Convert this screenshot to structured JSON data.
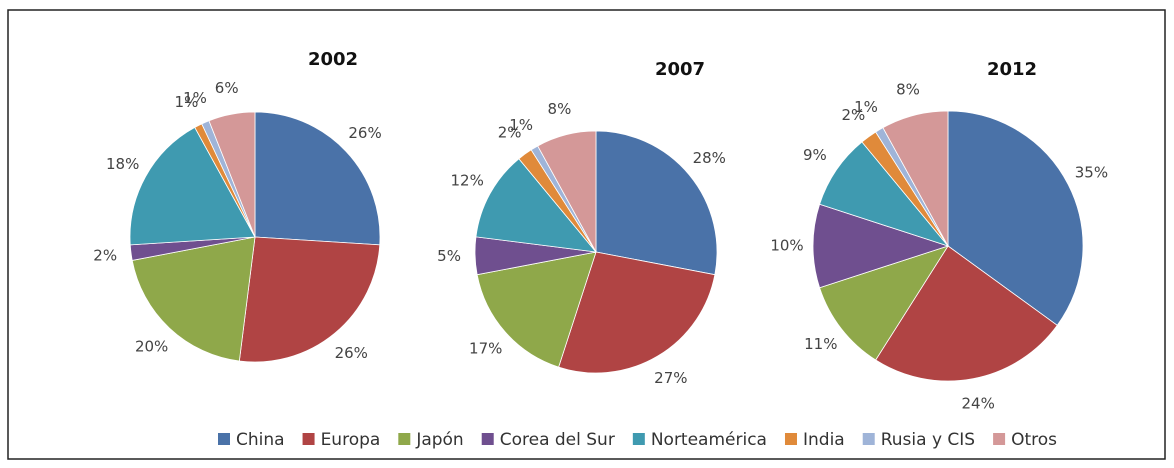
{
  "chart_data": [
    {
      "type": "pie",
      "title": "2002",
      "categories": [
        "China",
        "Europa",
        "Japón",
        "Corea del Sur",
        "Norteamérica",
        "India",
        "Rusia y CIS",
        "Otros"
      ],
      "values": [
        26,
        26,
        20,
        2,
        18,
        1,
        1,
        6
      ],
      "value_labels": [
        "26%",
        "26%",
        "20%",
        "2%",
        "18%",
        "1%",
        "1%",
        "6%"
      ],
      "colors": [
        "#4a72a8",
        "#b04444",
        "#8fa84a",
        "#6f4f8f",
        "#3f9ab0",
        "#e08a3a",
        "#9fb4d8",
        "#d49898"
      ]
    },
    {
      "type": "pie",
      "title": "2007",
      "categories": [
        "China",
        "Europa",
        "Japón",
        "Corea del Sur",
        "Norteamérica",
        "India",
        "Rusia y CIS",
        "Otros"
      ],
      "values": [
        28,
        27,
        17,
        5,
        12,
        2,
        1,
        8
      ],
      "value_labels": [
        "28%",
        "27%",
        "17%",
        "5%",
        "12%",
        "2%",
        "1%",
        "8%"
      ],
      "colors": [
        "#4a72a8",
        "#b04444",
        "#8fa84a",
        "#6f4f8f",
        "#3f9ab0",
        "#e08a3a",
        "#9fb4d8",
        "#d49898"
      ]
    },
    {
      "type": "pie",
      "title": "2012",
      "categories": [
        "China",
        "Europa",
        "Japón",
        "Corea del Sur",
        "Norteamérica",
        "India",
        "Rusia y CIS",
        "Otros"
      ],
      "values": [
        35,
        24,
        11,
        10,
        9,
        2,
        1,
        8
      ],
      "value_labels": [
        "35%",
        "24%",
        "11%",
        "10%",
        "9%",
        "2%",
        "1%",
        "8%"
      ],
      "colors": [
        "#4a72a8",
        "#b04444",
        "#8fa84a",
        "#6f4f8f",
        "#3f9ab0",
        "#e08a3a",
        "#9fb4d8",
        "#d49898"
      ]
    }
  ]
}
